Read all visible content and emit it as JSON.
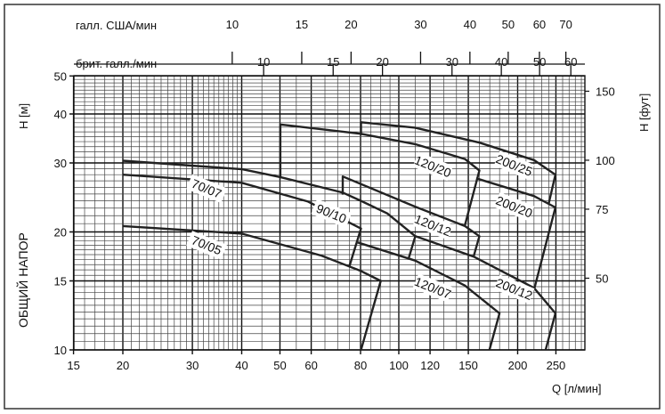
{
  "chart_data": {
    "type": "line",
    "title": "",
    "xlabel": "Q [л/мин]",
    "ylabel": "H [м]",
    "ylabel_side": "ОБЩИЙ НАПОР",
    "y2label": "H [фут]",
    "x_scale": "log",
    "y_scale": "log",
    "xlim": [
      15,
      296
    ],
    "ylim": [
      10,
      50
    ],
    "grid": true,
    "x_ticks": [
      15,
      20,
      30,
      40,
      50,
      60,
      80,
      100,
      120,
      150,
      200,
      250
    ],
    "y_ticks": [
      10,
      15,
      20,
      30,
      40,
      50
    ],
    "y2_ticks_ft": [
      50,
      75,
      100,
      150
    ],
    "top_axis_us": {
      "label": "галл. США/мин",
      "ticks": [
        10,
        15,
        20,
        30,
        40,
        50,
        60,
        70
      ]
    },
    "top_axis_uk": {
      "label": "брит. галл./мин",
      "ticks": [
        10,
        15,
        20,
        30,
        40,
        50,
        60
      ]
    },
    "series": [
      {
        "name": "70/05",
        "label_at": [
          32.6,
          18.5
        ],
        "points": [
          [
            20,
            20.7
          ],
          [
            40,
            19.8
          ],
          [
            63.7,
            17.4
          ],
          [
            80.2,
            15.9
          ],
          [
            90,
            15.0
          ],
          [
            80.2,
            10
          ]
        ]
      },
      {
        "name": "70/07",
        "label_at": [
          32.6,
          25.8
        ],
        "points": [
          [
            20,
            28.0
          ],
          [
            40,
            26.7
          ],
          [
            58.9,
            23.9
          ],
          [
            80.2,
            20.4
          ],
          [
            74.9,
            16.3
          ]
        ]
      },
      {
        "name": "90/10",
        "label_at": [
          67.5,
          22.3
        ],
        "points": [
          [
            20,
            30.4
          ],
          [
            40.1,
            28.9
          ],
          [
            50.1,
            27.6
          ],
          [
            72.1,
            25.2
          ],
          [
            80.2,
            24.0
          ],
          [
            93.5,
            22.3
          ],
          [
            110.1,
            19.5
          ],
          [
            105.9,
            17.1
          ]
        ]
      },
      {
        "name": "120/07",
        "label_at": [
          122,
          14.4
        ],
        "points": [
          [
            78.7,
            18.8
          ],
          [
            110,
            16.9
          ],
          [
            147,
            14.6
          ],
          [
            179.9,
            12.4
          ],
          [
            169.7,
            10
          ]
        ]
      },
      {
        "name": "120/12",
        "label_at": [
          122,
          20.8
        ],
        "points": [
          [
            72.1,
            24.9
          ],
          [
            72.1,
            27.7
          ],
          [
            110,
            23.2
          ],
          [
            147,
            20.7
          ],
          [
            160,
            19.5
          ],
          [
            154.7,
            17.3
          ]
        ]
      },
      {
        "name": "120/20",
        "label_at": [
          122,
          29.4
        ],
        "points": [
          [
            50.1,
            27.4
          ],
          [
            50.1,
            37.6
          ],
          [
            80.2,
            35.6
          ],
          [
            110,
            33.5
          ],
          [
            147,
            30.7
          ],
          [
            160,
            28.7
          ],
          [
            146.9,
            20.7
          ]
        ]
      },
      {
        "name": "200/12",
        "label_at": [
          196,
          14.3
        ],
        "points": [
          [
            110.1,
            19.5
          ],
          [
            154.7,
            17.3
          ],
          [
            220,
            14.4
          ],
          [
            249.3,
            12.4
          ],
          [
            235.4,
            10
          ]
        ]
      },
      {
        "name": "200/20",
        "label_at": [
          196,
          23.2
        ],
        "points": [
          [
            157.1,
            27.4
          ],
          [
            220,
            24.7
          ],
          [
            249.3,
            23.1
          ],
          [
            220.3,
            14.3
          ]
        ]
      },
      {
        "name": "200/25",
        "label_at": [
          196,
          29.6
        ],
        "points": [
          [
            80.2,
            35.3
          ],
          [
            80.2,
            38.1
          ],
          [
            110,
            36.9
          ],
          [
            160,
            33.8
          ],
          [
            220,
            30.5
          ],
          [
            249.3,
            28.0
          ],
          [
            239.9,
            23.7
          ]
        ]
      }
    ]
  }
}
